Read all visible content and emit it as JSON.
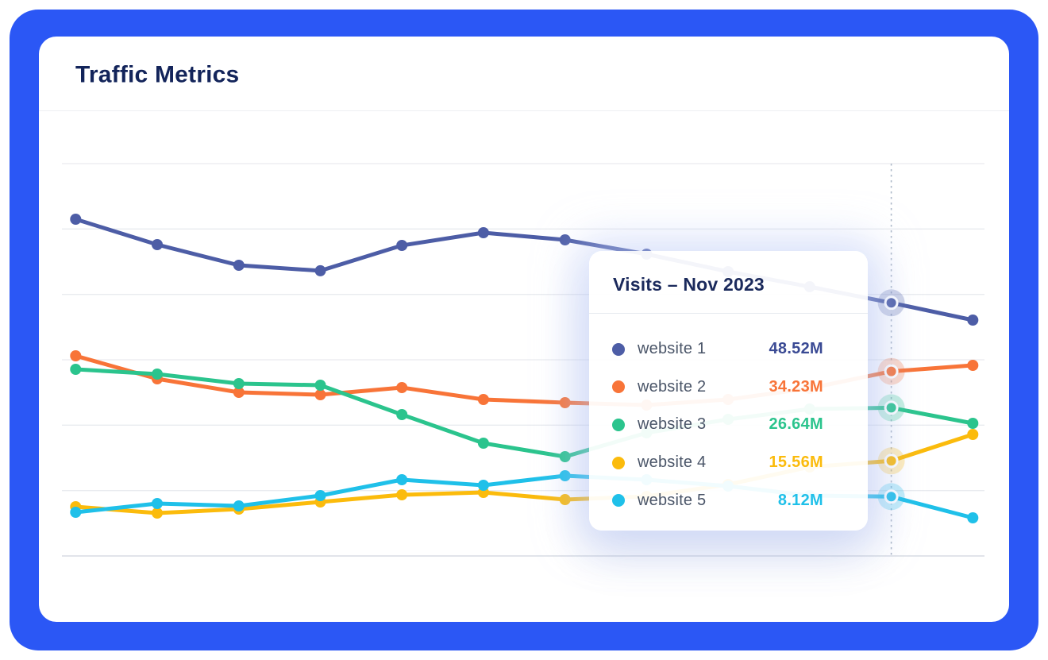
{
  "header": {
    "title": "Traffic Metrics"
  },
  "tooltip": {
    "title": "Visits – Nov 2023",
    "rows": [
      {
        "label": "website 1",
        "value": "48.52M",
        "color": "#4D5DA6",
        "text_color": "#3A4A94"
      },
      {
        "label": "website 2",
        "value": "34.23M",
        "color": "#F87438",
        "text_color": "#F87438"
      },
      {
        "label": "website 3",
        "value": "26.64M",
        "color": "#2BC48D",
        "text_color": "#2BC48D"
      },
      {
        "label": "website 4",
        "value": "15.56M",
        "color": "#FBBB0C",
        "text_color": "#FBBB0C"
      },
      {
        "label": "website 5",
        "value": "8.12M",
        "color": "#1FC0E9",
        "text_color": "#1FC0E9"
      }
    ]
  },
  "chart_data": {
    "type": "line",
    "title": "Traffic Metrics",
    "unit": "M (millions of visits)",
    "grid": true,
    "x_axis": {
      "tick_labels_visible": false,
      "num_points": 12,
      "hovered_point_index": 10,
      "hovered_point_label": "Nov 2023"
    },
    "y_axis": {
      "tick_labels_visible": false,
      "gridlines": 7
    },
    "legend_position": "tooltip-only",
    "series": [
      {
        "name": "website 1",
        "color": "#4D5DA6",
        "values": [
          65.97,
          60.67,
          56.36,
          55.21,
          60.5,
          63.15,
          61.66,
          58.68,
          55.04,
          51.89,
          48.52,
          44.93
        ],
        "value_at_hover": "48.52M"
      },
      {
        "name": "website 2",
        "color": "#F87438",
        "values": [
          37.48,
          32.68,
          29.86,
          29.36,
          30.85,
          28.37,
          27.71,
          27.21,
          28.37,
          30.69,
          34.23,
          35.49
        ],
        "value_at_hover": "34.23M"
      },
      {
        "name": "website 3",
        "color": "#2BC48D",
        "values": [
          34.66,
          33.67,
          31.68,
          31.35,
          25.22,
          19.26,
          16.44,
          21.41,
          24.23,
          26.38,
          26.64,
          23.4
        ],
        "value_at_hover": "26.64M"
      },
      {
        "name": "website 4",
        "color": "#FBBB0C",
        "values": [
          6.01,
          4.69,
          5.51,
          7.01,
          8.5,
          8.99,
          7.5,
          8.16,
          10.65,
          14.29,
          15.56,
          21.08
        ],
        "value_at_hover": "15.56M"
      },
      {
        "name": "website 5",
        "color": "#1FC0E9",
        "values": [
          4.85,
          6.67,
          6.18,
          8.33,
          11.64,
          10.48,
          12.47,
          11.64,
          10.32,
          8.33,
          8.12,
          3.69
        ],
        "value_at_hover": "8.12M"
      }
    ]
  },
  "colors": {
    "frame_blue": "#2B57F5",
    "card_bg": "#FFFFFF",
    "title_navy": "#13245A",
    "tooltip_title_navy": "#1B2A5C",
    "label_gray": "#4A5568",
    "gridline": "#E9EBEF",
    "axis_line": "#D8DCE3",
    "crosshair": "#AEB9C8"
  }
}
